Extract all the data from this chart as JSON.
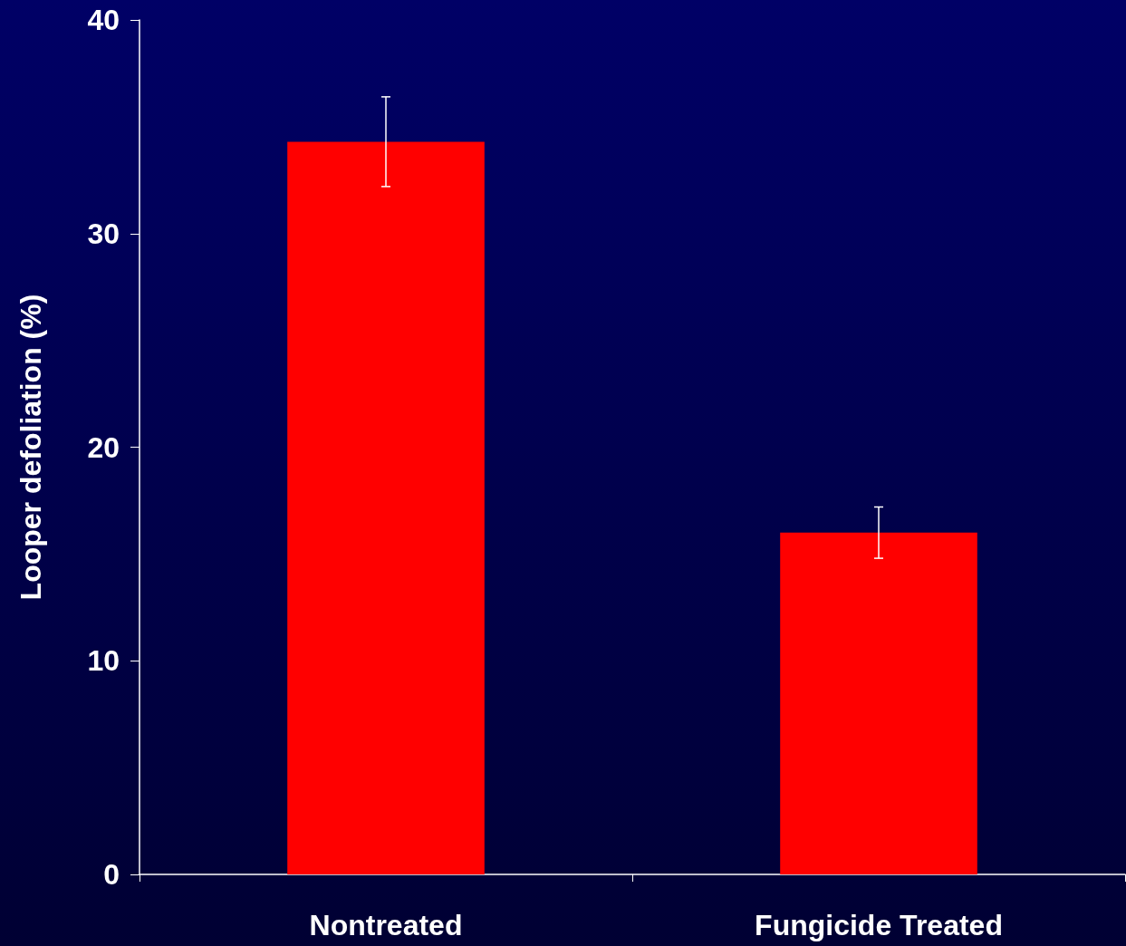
{
  "chart_data": {
    "type": "bar",
    "ylabel": "Looper defoliation (%)",
    "categories": [
      "Nontreated",
      "Fungicide Treated"
    ],
    "values": [
      34.3,
      16.0
    ],
    "errors": [
      2.1,
      1.2
    ],
    "color": "#ff0000",
    "ylim": [
      0,
      40
    ],
    "yticks": [
      0,
      10,
      20,
      30,
      40
    ],
    "grid": false
  }
}
